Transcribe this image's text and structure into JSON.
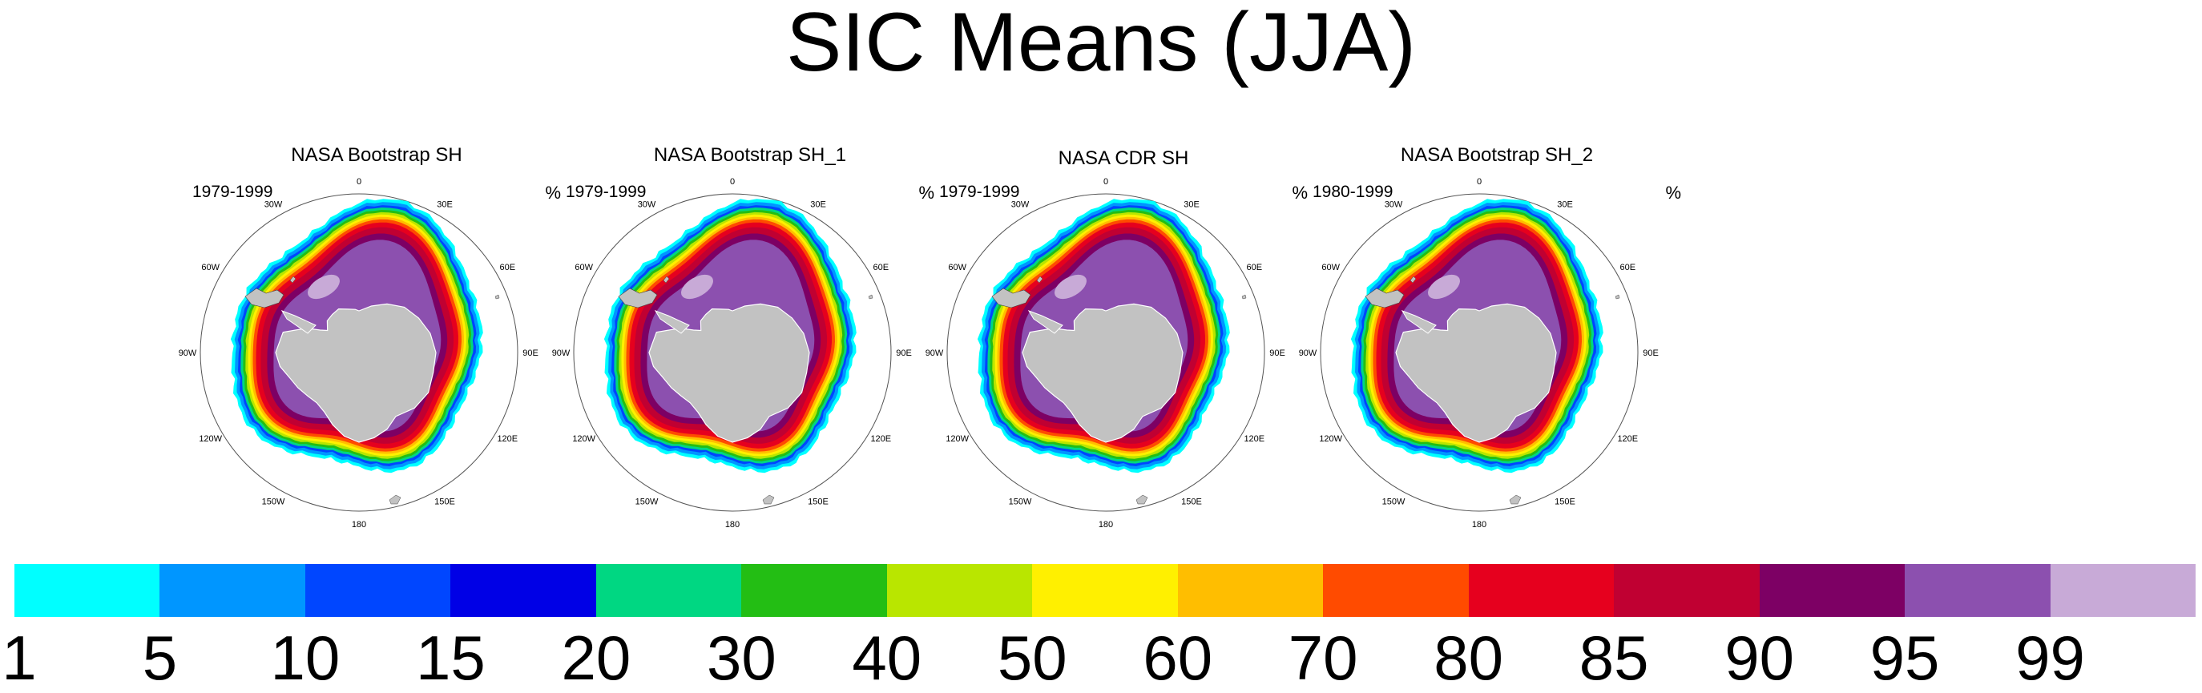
{
  "title": "SIC Means (JJA)",
  "units": "%",
  "panels": [
    {
      "title": "NASA Bootstrap SH",
      "period": "1979-1999"
    },
    {
      "title": "NASA Bootstrap SH_1",
      "period": "1979-1999"
    },
    {
      "title": "NASA CDR SH",
      "period": "1979-1999"
    },
    {
      "title": "NASA Bootstrap SH_2",
      "period": "1980-1999"
    }
  ],
  "lon_labels": [
    "0",
    "30E",
    "60E",
    "90E",
    "120E",
    "150E",
    "180",
    "150W",
    "120W",
    "90W",
    "60W",
    "30W"
  ],
  "colorbar": {
    "levels": [
      "1",
      "5",
      "10",
      "15",
      "20",
      "30",
      "40",
      "50",
      "60",
      "70",
      "80",
      "85",
      "90",
      "95",
      "99"
    ],
    "colors": [
      "#00ffff",
      "#0096ff",
      "#0046ff",
      "#0000e6",
      "#00d782",
      "#23be14",
      "#b9e600",
      "#fff000",
      "#ffbe00",
      "#ff4b00",
      "#e6001e",
      "#c00032",
      "#7d0064",
      "#8c50af",
      "#c8aad7"
    ]
  },
  "map_colors": {
    "land": "#c2c2c2",
    "ice_core": "#8c50af"
  }
}
